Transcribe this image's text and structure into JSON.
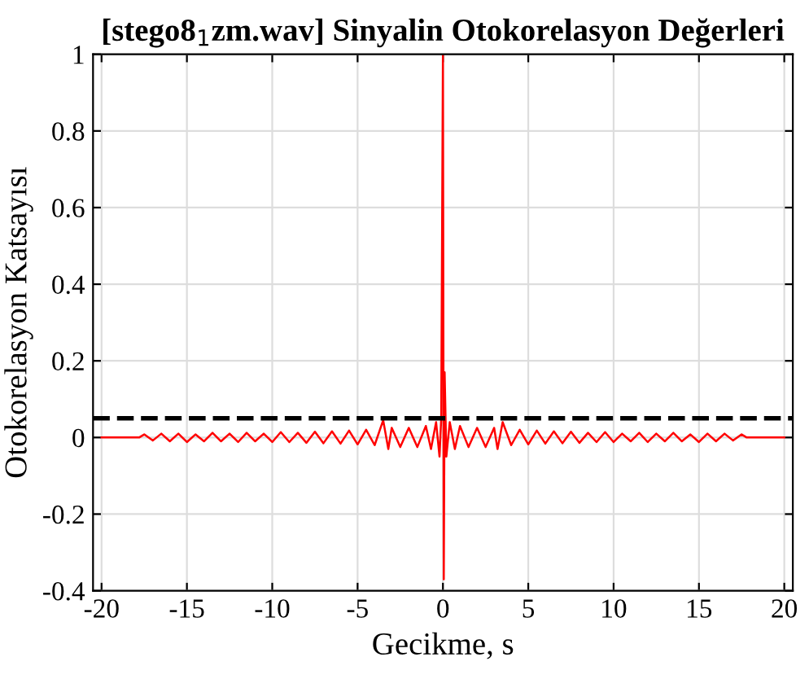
{
  "chart_data": {
    "type": "line",
    "title": "[stego8$_{1}$zm.wav] Sinyalin Otokorelasyon Değerleri",
    "xlabel": "Gecikme, s",
    "ylabel": "Otokorelasyon Katsayısı",
    "xlim": [
      -20.5,
      20.5
    ],
    "ylim": [
      -0.4,
      1
    ],
    "xticks": [
      -20,
      -15,
      -10,
      -5,
      0,
      5,
      10,
      15,
      20
    ],
    "yticks": [
      -0.4,
      -0.2,
      0,
      0.2,
      0.4,
      0.6,
      0.8,
      1
    ],
    "grid": true,
    "marker": "none",
    "line_style": "solid",
    "ref_lines": [
      {
        "axis": "y",
        "value": 0.05,
        "color": "#000000",
        "line_style": "dashed"
      }
    ],
    "series": [
      {
        "color": "#ff0000",
        "x": [
          -20,
          -17.8,
          -17.5,
          -17,
          -16.5,
          -16,
          -15.5,
          -15,
          -14.5,
          -14,
          -13.5,
          -13,
          -12.5,
          -12,
          -11.5,
          -11,
          -10.5,
          -10,
          -9.5,
          -9,
          -8.5,
          -8,
          -7.5,
          -7,
          -6.5,
          -6,
          -5.5,
          -5,
          -4.5,
          -4,
          -3.5,
          -3.2,
          -3,
          -2.5,
          -2,
          -1.5,
          -1,
          -0.7,
          -0.4,
          -0.2,
          -0.1,
          0,
          0.05,
          0.1,
          0.2,
          0.4,
          0.7,
          1,
          1.5,
          2,
          2.5,
          3,
          3.2,
          3.5,
          4,
          4.5,
          5,
          5.5,
          6,
          6.5,
          7,
          7.5,
          8,
          8.5,
          9,
          9.5,
          10,
          10.5,
          11,
          11.5,
          12,
          12.5,
          13,
          13.5,
          14,
          14.5,
          15,
          15.5,
          16,
          16.5,
          17,
          17.5,
          17.8,
          20
        ],
        "values": [
          0,
          0,
          0.008,
          -0.008,
          0.01,
          -0.01,
          0.01,
          -0.012,
          0.008,
          -0.01,
          0.012,
          -0.01,
          0.01,
          -0.012,
          0.012,
          -0.01,
          0.01,
          -0.012,
          0.014,
          -0.012,
          0.012,
          -0.014,
          0.015,
          -0.015,
          0.016,
          -0.016,
          0.018,
          -0.018,
          0.02,
          -0.02,
          0.045,
          -0.03,
          0.025,
          -0.025,
          0.025,
          -0.025,
          0.03,
          -0.03,
          0.04,
          -0.05,
          0.05,
          1,
          -0.37,
          0.17,
          -0.05,
          0.04,
          -0.03,
          0.03,
          -0.025,
          0.025,
          -0.025,
          0.025,
          -0.03,
          0.04,
          -0.02,
          0.02,
          -0.018,
          0.018,
          -0.016,
          0.016,
          -0.015,
          0.015,
          -0.014,
          0.012,
          -0.012,
          0.014,
          -0.012,
          0.01,
          -0.01,
          0.012,
          -0.012,
          0.01,
          -0.01,
          0.012,
          -0.01,
          0.008,
          -0.012,
          0.01,
          -0.01,
          0.01,
          -0.008,
          0.008,
          0,
          0
        ]
      }
    ]
  }
}
